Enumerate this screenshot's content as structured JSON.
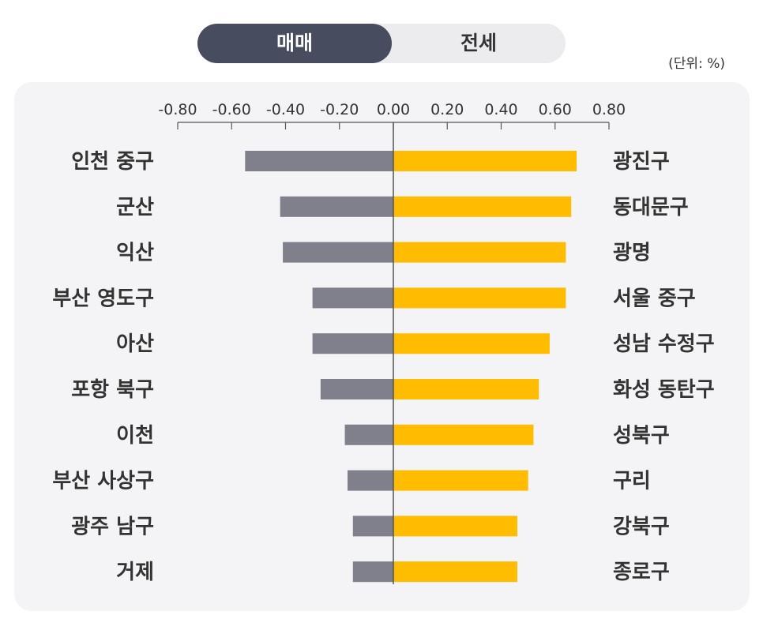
{
  "toggle": {
    "active_label": "매매",
    "inactive_label": "전세"
  },
  "unit_label": "(단위: %)",
  "colors": {
    "negative_bar": "#7f808c",
    "positive_bar": "#ffbc00",
    "toggle_active_bg": "#474c5e",
    "panel_bg": "#f4f4f6"
  },
  "chart_data": {
    "type": "bar",
    "orientation": "horizontal-diverging",
    "xlim": [
      -0.8,
      0.8
    ],
    "ticks": [
      "-0.80",
      "-0.60",
      "-0.40",
      "-0.20",
      "0.00",
      "0.20",
      "0.40",
      "0.60",
      "0.80"
    ],
    "tick_values": [
      -0.8,
      -0.6,
      -0.4,
      -0.2,
      0.0,
      0.2,
      0.4,
      0.6,
      0.8
    ],
    "series": [
      {
        "categories": [
          "인천 중구",
          "군산",
          "익산",
          "부산 영도구",
          "아산",
          "포항 북구",
          "이천",
          "부산 사상구",
          "광주 남구",
          "거제"
        ],
        "values": [
          -0.55,
          -0.42,
          -0.41,
          -0.3,
          -0.3,
          -0.27,
          -0.18,
          -0.17,
          -0.15,
          -0.15
        ]
      },
      {
        "categories": [
          "광진구",
          "동대문구",
          "광명",
          "서울 중구",
          "성남 수정구",
          "화성 동탄구",
          "성북구",
          "구리",
          "강북구",
          "종로구"
        ],
        "values": [
          0.68,
          0.66,
          0.64,
          0.64,
          0.58,
          0.54,
          0.52,
          0.5,
          0.46,
          0.46
        ]
      }
    ]
  }
}
